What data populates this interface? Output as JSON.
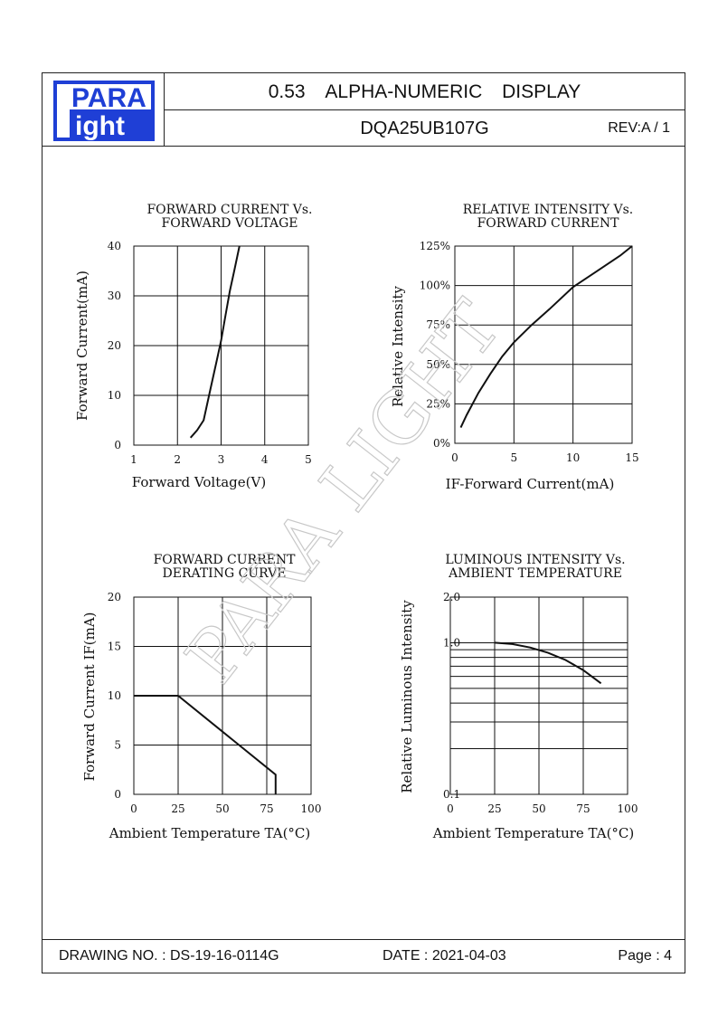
{
  "header": {
    "logo_top": "PARA",
    "logo_bottom": "ight",
    "title_parts": [
      "0.53",
      "ALPHA-NUMERIC",
      "DISPLAY"
    ],
    "part_number": "DQA25UB107G",
    "revision": "REV:A / 1"
  },
  "footer": {
    "drawing_no": "DRAWING NO. : DS-19-16-0114G",
    "date": "DATE : 2021-04-03",
    "page": "Page : 4"
  },
  "watermark": "PARA LIGHT",
  "colors": {
    "logo_blue": "#1f3fd6",
    "ink": "#111111",
    "watermark": "#c8c8c8"
  },
  "chart_data": [
    {
      "type": "line",
      "title": [
        "FORWARD  CURRENT  Vs.",
        "FORWARD  VOLTAGE"
      ],
      "xlabel": "Forward Voltage(V)",
      "ylabel": "Forward Current(mA)",
      "xlim": [
        1,
        5
      ],
      "ylim": [
        0,
        40
      ],
      "xticks": [
        1,
        2,
        3,
        4,
        5
      ],
      "yticks": [
        0,
        10,
        20,
        30,
        40
      ],
      "xtick_labels": [
        "1",
        "2",
        "3",
        "4",
        "5"
      ],
      "ytick_labels": [
        "0",
        "10",
        "20",
        "30",
        "40"
      ],
      "grid": true,
      "series": [
        {
          "x": [
            2.3,
            2.45,
            2.6,
            2.75,
            2.9,
            3.0,
            3.1,
            3.2,
            3.3,
            3.42
          ],
          "y": [
            1.5,
            3,
            5,
            11,
            17,
            21,
            26,
            31,
            35,
            40
          ]
        }
      ]
    },
    {
      "type": "line",
      "title": [
        "RELATIVE  INTENSITY  Vs.",
        "FORWARD  CURRENT"
      ],
      "xlabel": "IF-Forward Current(mA)",
      "ylabel": "Relative Intensity",
      "xlim": [
        0,
        15
      ],
      "ylim": [
        0,
        125
      ],
      "xticks": [
        0,
        5,
        10,
        15
      ],
      "yticks": [
        0,
        25,
        50,
        75,
        100,
        125
      ],
      "xtick_labels": [
        "0",
        "5",
        "10",
        "15"
      ],
      "ytick_labels": [
        "0%",
        "25%",
        "50%",
        "75%",
        "100%",
        "125%"
      ],
      "grid": true,
      "series": [
        {
          "x": [
            0.5,
            1,
            2,
            3,
            4,
            5,
            6.5,
            8,
            10,
            12,
            14,
            15
          ],
          "y": [
            10,
            18,
            32,
            44,
            55,
            64,
            75,
            85,
            99,
            109,
            119,
            125
          ]
        }
      ]
    },
    {
      "type": "line",
      "title": [
        "FORWARD  CURRENT",
        "DERATING  CURVE"
      ],
      "xlabel": "Ambient Temperature TA(°C)",
      "ylabel": "Forward Current IF(mA)",
      "xlim": [
        0,
        100
      ],
      "ylim": [
        0,
        20
      ],
      "xticks": [
        0,
        25,
        50,
        75,
        100
      ],
      "yticks": [
        0,
        5,
        10,
        15,
        20
      ],
      "xtick_labels": [
        "0",
        "25",
        "50",
        "75",
        "100"
      ],
      "ytick_labels": [
        "0",
        "5",
        "10",
        "15",
        "20"
      ],
      "grid": true,
      "series": [
        {
          "x": [
            0,
            25,
            80,
            80
          ],
          "y": [
            10,
            10,
            2,
            0
          ]
        }
      ]
    },
    {
      "type": "line",
      "title": [
        "LUMINOUS  INTENSITY  Vs.",
        "AMBIENT  TEMPERATURE"
      ],
      "xlabel": "Ambient Temperature TA(°C)",
      "ylabel": "Relative Luminous Intensity",
      "scale": "log-y",
      "xlim": [
        0,
        100
      ],
      "ylim": [
        0.1,
        2.0
      ],
      "xticks": [
        0,
        25,
        50,
        75,
        100
      ],
      "xtick_labels": [
        "0",
        "25",
        "50",
        "75",
        "100"
      ],
      "ytick_labels": [
        "2.0",
        "1.0",
        "0.1"
      ],
      "ytick_values": [
        2.0,
        1.0,
        0.1
      ],
      "grid": true,
      "series": [
        {
          "x": [
            25,
            35,
            45,
            55,
            65,
            75,
            85
          ],
          "y": [
            1.0,
            0.98,
            0.93,
            0.86,
            0.77,
            0.66,
            0.54
          ]
        }
      ]
    }
  ]
}
